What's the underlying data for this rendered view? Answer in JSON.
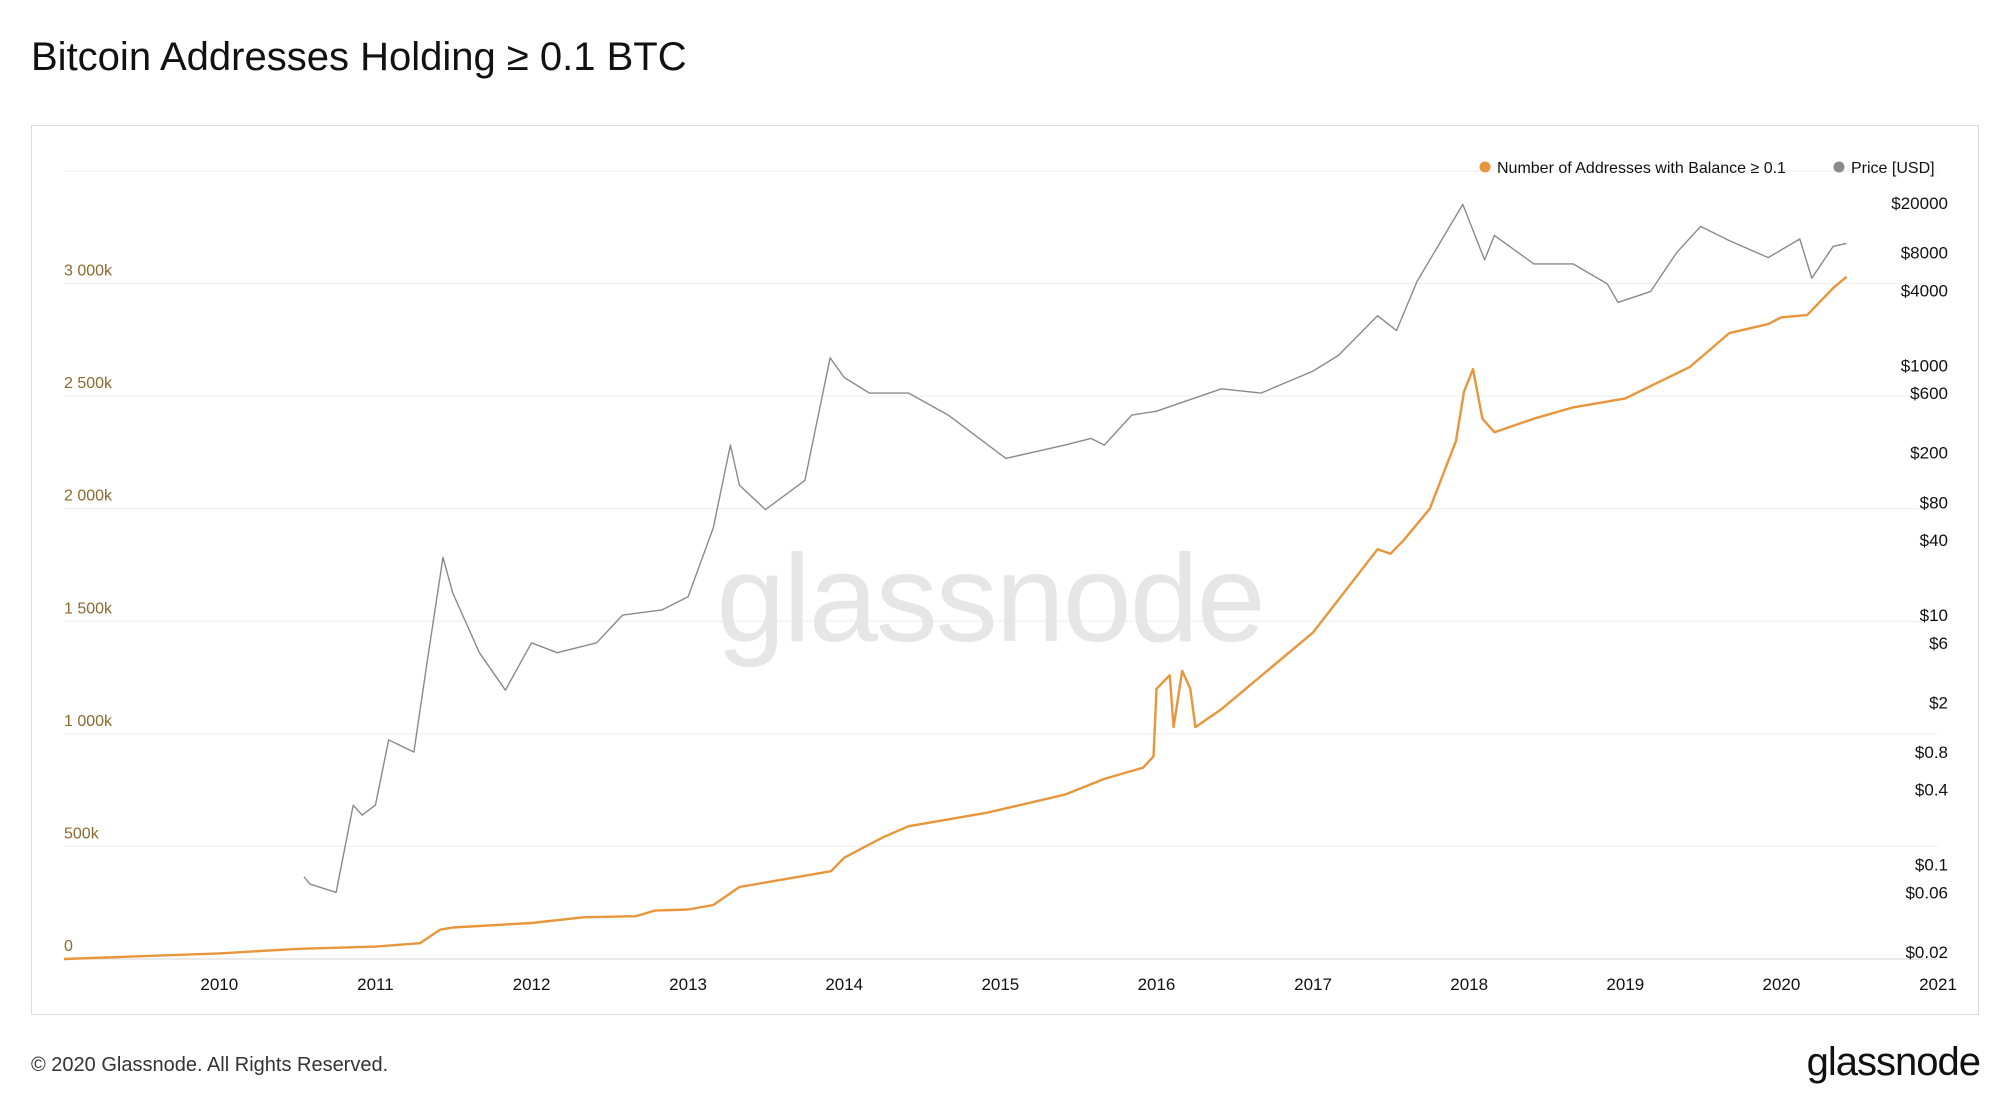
{
  "title": "Bitcoin Addresses Holding ≥ 0.1 BTC",
  "footer": {
    "copyright": "© 2020 Glassnode. All Rights Reserved.",
    "logo": "glassnode"
  },
  "watermark": "glassnode",
  "chart_data": {
    "type": "line",
    "legend_position": "top-right",
    "grid": true,
    "colors": {
      "addresses": "#e8963c",
      "price": "#8a8a8a",
      "left_axis_text": "#8a6a2e",
      "grid": "#eeeeee"
    },
    "x_axis": {
      "range": [
        "2009-01-03",
        "2021-01-01"
      ],
      "ticks": [
        "2010",
        "2011",
        "2012",
        "2013",
        "2014",
        "2015",
        "2016",
        "2017",
        "2018",
        "2019",
        "2020",
        "2021"
      ]
    },
    "y_left": {
      "range": [
        0,
        3500000
      ],
      "ticks": [
        {
          "value": 0,
          "label": "0"
        },
        {
          "value": 500000,
          "label": "500k"
        },
        {
          "value": 1000000,
          "label": "1 000k"
        },
        {
          "value": 1500000,
          "label": "1 500k"
        },
        {
          "value": 2000000,
          "label": "2 000k"
        },
        {
          "value": 2500000,
          "label": "2 500k"
        },
        {
          "value": 3000000,
          "label": "3 000k"
        }
      ]
    },
    "y_right": {
      "scale": "log",
      "range": [
        0.02,
        20000
      ],
      "ticks": [
        {
          "value": 20000,
          "label": "$20000"
        },
        {
          "value": 8000,
          "label": "$8000"
        },
        {
          "value": 4000,
          "label": "$4000"
        },
        {
          "value": 1000,
          "label": "$1000"
        },
        {
          "value": 600,
          "label": "$600"
        },
        {
          "value": 200,
          "label": "$200"
        },
        {
          "value": 80,
          "label": "$80"
        },
        {
          "value": 40,
          "label": "$40"
        },
        {
          "value": 10,
          "label": "$10"
        },
        {
          "value": 6,
          "label": "$6"
        },
        {
          "value": 2,
          "label": "$2"
        },
        {
          "value": 0.8,
          "label": "$0.8"
        },
        {
          "value": 0.4,
          "label": "$0.4"
        },
        {
          "value": 0.1,
          "label": "$0.1"
        },
        {
          "value": 0.06,
          "label": "$0.06"
        },
        {
          "value": 0.02,
          "label": "$0.02"
        }
      ]
    },
    "series": [
      {
        "name": "Number of Addresses with Balance ≥ 0.1",
        "axis": "left",
        "points": [
          [
            "2009-01-03",
            0
          ],
          [
            "2010-01-01",
            25000
          ],
          [
            "2010-07-01",
            45000
          ],
          [
            "2011-01-01",
            55000
          ],
          [
            "2011-04-15",
            70000
          ],
          [
            "2011-06-01",
            130000
          ],
          [
            "2011-07-01",
            140000
          ],
          [
            "2012-01-01",
            160000
          ],
          [
            "2012-05-01",
            185000
          ],
          [
            "2012-09-01",
            190000
          ],
          [
            "2012-10-15",
            215000
          ],
          [
            "2013-01-01",
            220000
          ],
          [
            "2013-03-01",
            240000
          ],
          [
            "2013-05-01",
            320000
          ],
          [
            "2013-09-01",
            360000
          ],
          [
            "2013-12-01",
            390000
          ],
          [
            "2014-01-01",
            450000
          ],
          [
            "2014-04-01",
            540000
          ],
          [
            "2014-06-01",
            590000
          ],
          [
            "2014-12-01",
            650000
          ],
          [
            "2015-06-01",
            730000
          ],
          [
            "2015-09-01",
            800000
          ],
          [
            "2015-12-01",
            850000
          ],
          [
            "2015-12-25",
            900000
          ],
          [
            "2016-01-01",
            1200000
          ],
          [
            "2016-02-01",
            1260000
          ],
          [
            "2016-02-10",
            1030000
          ],
          [
            "2016-03-01",
            1280000
          ],
          [
            "2016-03-20",
            1200000
          ],
          [
            "2016-04-01",
            1030000
          ],
          [
            "2016-06-01",
            1110000
          ],
          [
            "2017-01-01",
            1450000
          ],
          [
            "2017-06-01",
            1820000
          ],
          [
            "2017-07-01",
            1800000
          ],
          [
            "2017-08-01",
            1860000
          ],
          [
            "2017-10-01",
            2000000
          ],
          [
            "2017-12-01",
            2300000
          ],
          [
            "2017-12-20",
            2520000
          ],
          [
            "2018-01-10",
            2620000
          ],
          [
            "2018-02-01",
            2400000
          ],
          [
            "2018-03-01",
            2340000
          ],
          [
            "2018-06-01",
            2400000
          ],
          [
            "2018-09-01",
            2450000
          ],
          [
            "2019-01-01",
            2490000
          ],
          [
            "2019-06-01",
            2630000
          ],
          [
            "2019-09-01",
            2780000
          ],
          [
            "2019-12-01",
            2820000
          ],
          [
            "2020-01-01",
            2850000
          ],
          [
            "2020-03-01",
            2860000
          ],
          [
            "2020-05-01",
            2980000
          ],
          [
            "2020-06-01",
            3030000
          ]
        ]
      },
      {
        "name": "Price [USD]",
        "axis": "right",
        "points": [
          [
            "2010-07-18",
            0.08
          ],
          [
            "2010-08-01",
            0.07
          ],
          [
            "2010-10-01",
            0.06
          ],
          [
            "2010-11-10",
            0.3
          ],
          [
            "2010-12-01",
            0.25
          ],
          [
            "2011-01-01",
            0.3
          ],
          [
            "2011-02-01",
            1.0
          ],
          [
            "2011-03-01",
            0.9
          ],
          [
            "2011-04-01",
            0.8
          ],
          [
            "2011-05-01",
            4
          ],
          [
            "2011-06-08",
            29
          ],
          [
            "2011-07-01",
            15
          ],
          [
            "2011-09-01",
            5
          ],
          [
            "2011-11-01",
            2.5
          ],
          [
            "2012-01-01",
            6
          ],
          [
            "2012-03-01",
            5
          ],
          [
            "2012-06-01",
            6
          ],
          [
            "2012-08-01",
            10
          ],
          [
            "2012-11-01",
            11
          ],
          [
            "2013-01-01",
            14
          ],
          [
            "2013-03-01",
            50
          ],
          [
            "2013-04-10",
            230
          ],
          [
            "2013-05-01",
            110
          ],
          [
            "2013-07-01",
            70
          ],
          [
            "2013-10-01",
            120
          ],
          [
            "2013-11-29",
            1150
          ],
          [
            "2014-01-01",
            800
          ],
          [
            "2014-03-01",
            600
          ],
          [
            "2014-06-01",
            600
          ],
          [
            "2014-09-01",
            400
          ],
          [
            "2015-01-14",
            180
          ],
          [
            "2015-06-01",
            230
          ],
          [
            "2015-08-01",
            260
          ],
          [
            "2015-09-01",
            230
          ],
          [
            "2015-11-04",
            400
          ],
          [
            "2016-01-01",
            430
          ],
          [
            "2016-06-01",
            650
          ],
          [
            "2016-09-01",
            600
          ],
          [
            "2017-01-01",
            900
          ],
          [
            "2017-03-01",
            1200
          ],
          [
            "2017-06-01",
            2500
          ],
          [
            "2017-07-15",
            1900
          ],
          [
            "2017-09-01",
            4700
          ],
          [
            "2017-12-17",
            19500
          ],
          [
            "2018-02-06",
            7000
          ],
          [
            "2018-03-01",
            11000
          ],
          [
            "2018-06-01",
            6500
          ],
          [
            "2018-09-01",
            6500
          ],
          [
            "2018-11-20",
            4500
          ],
          [
            "2018-12-15",
            3200
          ],
          [
            "2019-03-01",
            3900
          ],
          [
            "2019-05-01",
            8000
          ],
          [
            "2019-06-26",
            13000
          ],
          [
            "2019-09-01",
            10000
          ],
          [
            "2019-12-01",
            7300
          ],
          [
            "2020-02-13",
            10300
          ],
          [
            "2020-03-12",
            5000
          ],
          [
            "2020-05-01",
            9000
          ],
          [
            "2020-06-01",
            9500
          ]
        ]
      }
    ]
  }
}
